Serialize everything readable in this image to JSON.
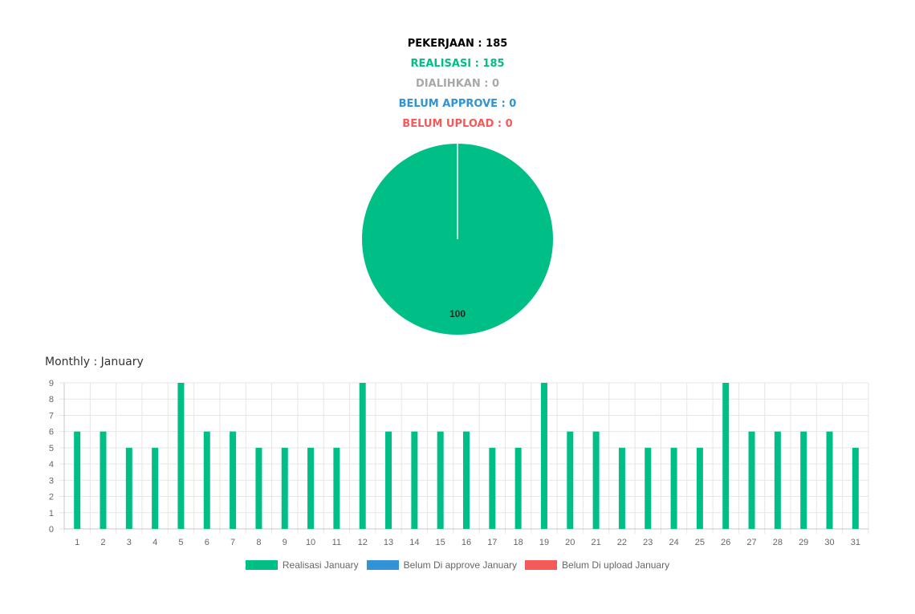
{
  "summary": {
    "pekerjaan": "PEKERJAAN : 185",
    "realisasi": "REALISASI : 185",
    "dialihkan": "DIALIHKAN : 0",
    "belum_approve": "BELUM APPROVE : 0",
    "belum_upload": "BELUM UPLOAD : 0"
  },
  "colors": {
    "pekerjaan": "#000000",
    "realisasi": "#00bf86",
    "dialihkan": "#a8a8a8",
    "belum_approve": "#2f93d6",
    "belum_upload": "#f55a5a",
    "grid": "#e6e6e6",
    "axis_text": "#666666"
  },
  "monthly_title": "Monthly : January",
  "chart_data": [
    {
      "type": "pie",
      "labels": [
        "Realisasi",
        "Belum Approve",
        "Belum Upload"
      ],
      "values": [
        100,
        0,
        0
      ],
      "data_label": "100",
      "colors": [
        "#00bf86",
        "#2f93d6",
        "#f55a5a"
      ]
    },
    {
      "type": "bar",
      "title": "Monthly : January",
      "categories": [
        "1",
        "2",
        "3",
        "4",
        "5",
        "6",
        "7",
        "8",
        "9",
        "10",
        "11",
        "12",
        "13",
        "14",
        "15",
        "16",
        "17",
        "18",
        "19",
        "20",
        "21",
        "22",
        "23",
        "24",
        "25",
        "26",
        "27",
        "28",
        "29",
        "30",
        "31"
      ],
      "series": [
        {
          "name": "Realisasi January",
          "color": "#00bf86",
          "values": [
            6,
            6,
            5,
            5,
            9,
            6,
            6,
            5,
            5,
            5,
            5,
            9,
            6,
            6,
            6,
            6,
            5,
            5,
            9,
            6,
            6,
            5,
            5,
            5,
            5,
            9,
            6,
            6,
            6,
            6,
            5
          ]
        },
        {
          "name": "Belum Di approve January",
          "color": "#2f93d6",
          "values": [
            0,
            0,
            0,
            0,
            0,
            0,
            0,
            0,
            0,
            0,
            0,
            0,
            0,
            0,
            0,
            0,
            0,
            0,
            0,
            0,
            0,
            0,
            0,
            0,
            0,
            0,
            0,
            0,
            0,
            0,
            0
          ]
        },
        {
          "name": "Belum Di upload January",
          "color": "#f55a5a",
          "values": [
            0,
            0,
            0,
            0,
            0,
            0,
            0,
            0,
            0,
            0,
            0,
            0,
            0,
            0,
            0,
            0,
            0,
            0,
            0,
            0,
            0,
            0,
            0,
            0,
            0,
            0,
            0,
            0,
            0,
            0,
            0
          ]
        }
      ],
      "ylim": [
        0,
        9
      ],
      "yticks": [
        "0",
        "1",
        "2",
        "3",
        "4",
        "5",
        "6",
        "7",
        "8",
        "9"
      ],
      "grid": true,
      "legend": "bottom"
    }
  ]
}
